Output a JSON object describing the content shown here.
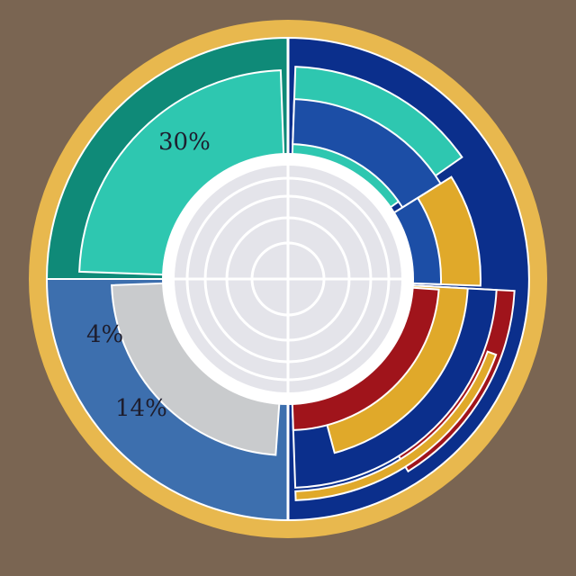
{
  "chart_data": {
    "type": "pie",
    "title": "",
    "labels_printed": [
      "30%",
      "4%",
      "14%"
    ],
    "colors": {
      "background": "#7a6552",
      "frame": "#e8b84e",
      "teal_dark": "#0f8a78",
      "teal_light": "#2ec7b0",
      "blue_mid": "#3d6fae",
      "blue_dark": "#0b2f8c",
      "blue_med": "#1c4ea6",
      "gold": "#e0a92a",
      "red": "#a0141b",
      "grey": "#c9cbcd",
      "center": "#ffffff"
    }
  }
}
